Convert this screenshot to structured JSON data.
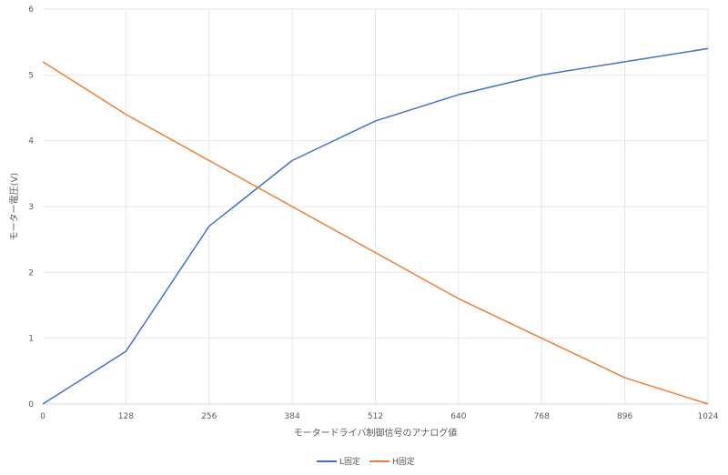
{
  "chart_data": {
    "type": "line",
    "title": "",
    "xlabel": "モータードライバ制御信号のアナログ値",
    "ylabel": "モーター電圧(V)",
    "x": [
      0,
      128,
      256,
      384,
      512,
      640,
      768,
      896,
      1024
    ],
    "xlim": [
      0,
      1024
    ],
    "ylim": [
      0,
      6
    ],
    "yticks": [
      0,
      1,
      2,
      3,
      4,
      5,
      6
    ],
    "grid": true,
    "legend": "bottom-center",
    "series": [
      {
        "name": "L固定",
        "color": "#4472c4",
        "values": [
          0,
          0.8,
          2.7,
          3.7,
          4.3,
          4.7,
          5.0,
          5.2,
          5.4
        ]
      },
      {
        "name": "H固定",
        "color": "#ed7d31",
        "values": [
          5.2,
          4.4,
          3.7,
          3.0,
          2.3,
          1.6,
          1.0,
          0.4,
          0
        ]
      }
    ]
  }
}
